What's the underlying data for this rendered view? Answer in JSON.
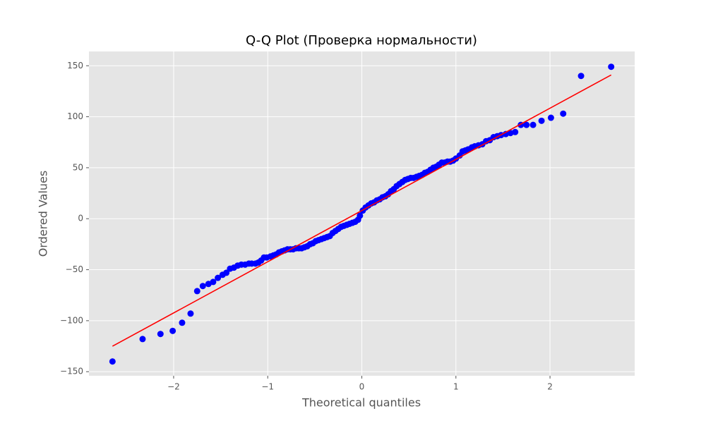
{
  "chart_data": {
    "type": "scatter",
    "title": "Q-Q Plot (Проверка нормальности)",
    "x_label": "Theoretical quantiles",
    "y_label": "Ordered Values",
    "xlim": [
      -2.9,
      2.9
    ],
    "ylim": [
      -154,
      164
    ],
    "xticks": [
      {
        "value": -2,
        "label": "−2"
      },
      {
        "value": -1,
        "label": "−1"
      },
      0,
      1,
      2
    ],
    "yticks": [
      {
        "value": -150,
        "label": "−150"
      },
      {
        "value": -100,
        "label": "−100"
      },
      {
        "value": -50,
        "label": "−50"
      },
      0,
      50,
      100,
      150
    ],
    "grid": true,
    "points": {
      "color": "#0000ff",
      "x": [
        -2.65,
        -2.33,
        -2.14,
        -2.01,
        -1.91,
        -1.82,
        -1.75,
        -1.69,
        -1.63,
        -1.58,
        -1.53,
        -1.48,
        -1.44,
        -1.4,
        -1.36,
        -1.32,
        -1.28,
        -1.24,
        -1.2,
        -1.17,
        -1.13,
        -1.1,
        -1.07,
        -1.04,
        -1.01,
        -0.97,
        -0.94,
        -0.91,
        -0.88,
        -0.85,
        -0.82,
        -0.79,
        -0.76,
        -0.73,
        -0.7,
        -0.67,
        -0.64,
        -0.61,
        -0.58,
        -0.55,
        -0.52,
        -0.49,
        -0.46,
        -0.43,
        -0.4,
        -0.37,
        -0.34,
        -0.31,
        -0.28,
        -0.25,
        -0.22,
        -0.19,
        -0.16,
        -0.13,
        -0.1,
        -0.07,
        -0.04,
        -0.02,
        0.01,
        0.04,
        0.07,
        0.1,
        0.13,
        0.16,
        0.19,
        0.22,
        0.25,
        0.28,
        0.31,
        0.34,
        0.37,
        0.4,
        0.43,
        0.46,
        0.49,
        0.52,
        0.55,
        0.58,
        0.61,
        0.64,
        0.67,
        0.7,
        0.73,
        0.76,
        0.79,
        0.82,
        0.85,
        0.88,
        0.91,
        0.94,
        0.97,
        1.0,
        1.04,
        1.07,
        1.1,
        1.13,
        1.17,
        1.2,
        1.24,
        1.28,
        1.32,
        1.36,
        1.4,
        1.44,
        1.48,
        1.53,
        1.58,
        1.63,
        1.69,
        1.75,
        1.82,
        1.91,
        2.01,
        2.14,
        2.33,
        2.65
      ],
      "values": [
        -140,
        -118,
        -113,
        -110,
        -102,
        -93,
        -71,
        -66,
        -64,
        -62,
        -58,
        -55,
        -53,
        -49,
        -48,
        -46,
        -45,
        -45,
        -44,
        -44,
        -44,
        -43,
        -41,
        -38,
        -38,
        -37,
        -36,
        -35,
        -33,
        -32,
        -31,
        -30,
        -30,
        -30,
        -29,
        -29,
        -29,
        -28,
        -27,
        -25,
        -24,
        -22,
        -21,
        -20,
        -19,
        -18,
        -17,
        -14,
        -12,
        -10,
        -8,
        -7,
        -6,
        -5,
        -4,
        -3,
        -1,
        3,
        8,
        11,
        13,
        15,
        16,
        18,
        19,
        21,
        22,
        24,
        27,
        29,
        32,
        34,
        36,
        38,
        39,
        40,
        40,
        41,
        42,
        43,
        45,
        46,
        48,
        50,
        51,
        53,
        55,
        55,
        56,
        56,
        57,
        59,
        62,
        66,
        67,
        68,
        70,
        71,
        72,
        73,
        76,
        77,
        80,
        81,
        82,
        83,
        84,
        85,
        92,
        92,
        92,
        96,
        99,
        103,
        140,
        149
      ]
    },
    "fit_line": {
      "color": "#ff0000",
      "x": [
        -2.65,
        2.65
      ],
      "values": [
        -125,
        141
      ]
    }
  }
}
